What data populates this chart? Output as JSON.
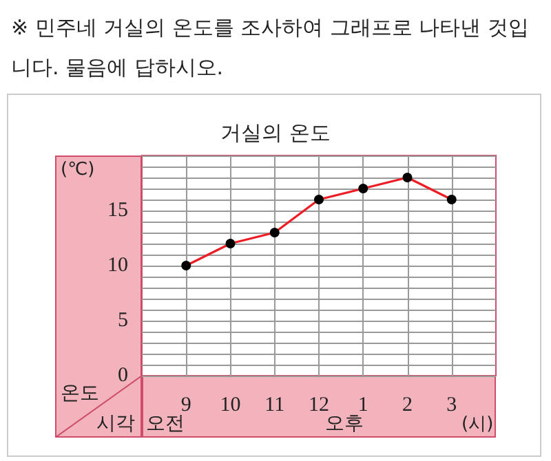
{
  "chart_data": {
    "type": "line",
    "title": "거실의 온도",
    "ylabel": "(℃)",
    "xlabel": "(시)",
    "annotations": [
      "※ 민주네 거실의 온도를 조사하여 그래프로 나타낸 것입니다. 물음에 답하시오.",
      "온도",
      "시각",
      "오전",
      "오후"
    ],
    "categories": [
      "9",
      "10",
      "11",
      "12",
      "1",
      "2",
      "3"
    ],
    "series": [
      {
        "color": "#ee1c25",
        "values": [
          10,
          12,
          13,
          16,
          17,
          18,
          16
        ]
      }
    ],
    "ylim": [
      0,
      20
    ],
    "yticks": [
      0,
      {
        "value": 1,
        "label": null
      },
      {
        "value": 2,
        "label": null
      },
      {
        "value": 3,
        "label": null
      },
      {
        "value": 4,
        "label": null
      },
      5,
      {
        "value": 6,
        "label": null
      },
      {
        "value": 7,
        "label": null
      },
      {
        "value": 8,
        "label": null
      },
      {
        "value": 9,
        "label": null
      },
      10,
      {
        "value": 11,
        "label": null
      },
      {
        "value": 12,
        "label": null
      },
      {
        "value": 13,
        "label": null
      },
      {
        "value": 14,
        "label": null
      },
      15,
      {
        "value": 16,
        "label": null
      },
      {
        "value": 17,
        "label": null
      },
      {
        "value": 18,
        "label": null
      },
      {
        "value": 19,
        "label": null
      },
      {
        "value": 20,
        "label": null
      }
    ],
    "grid": true,
    "marker": "circle",
    "line_style": "solid"
  }
}
